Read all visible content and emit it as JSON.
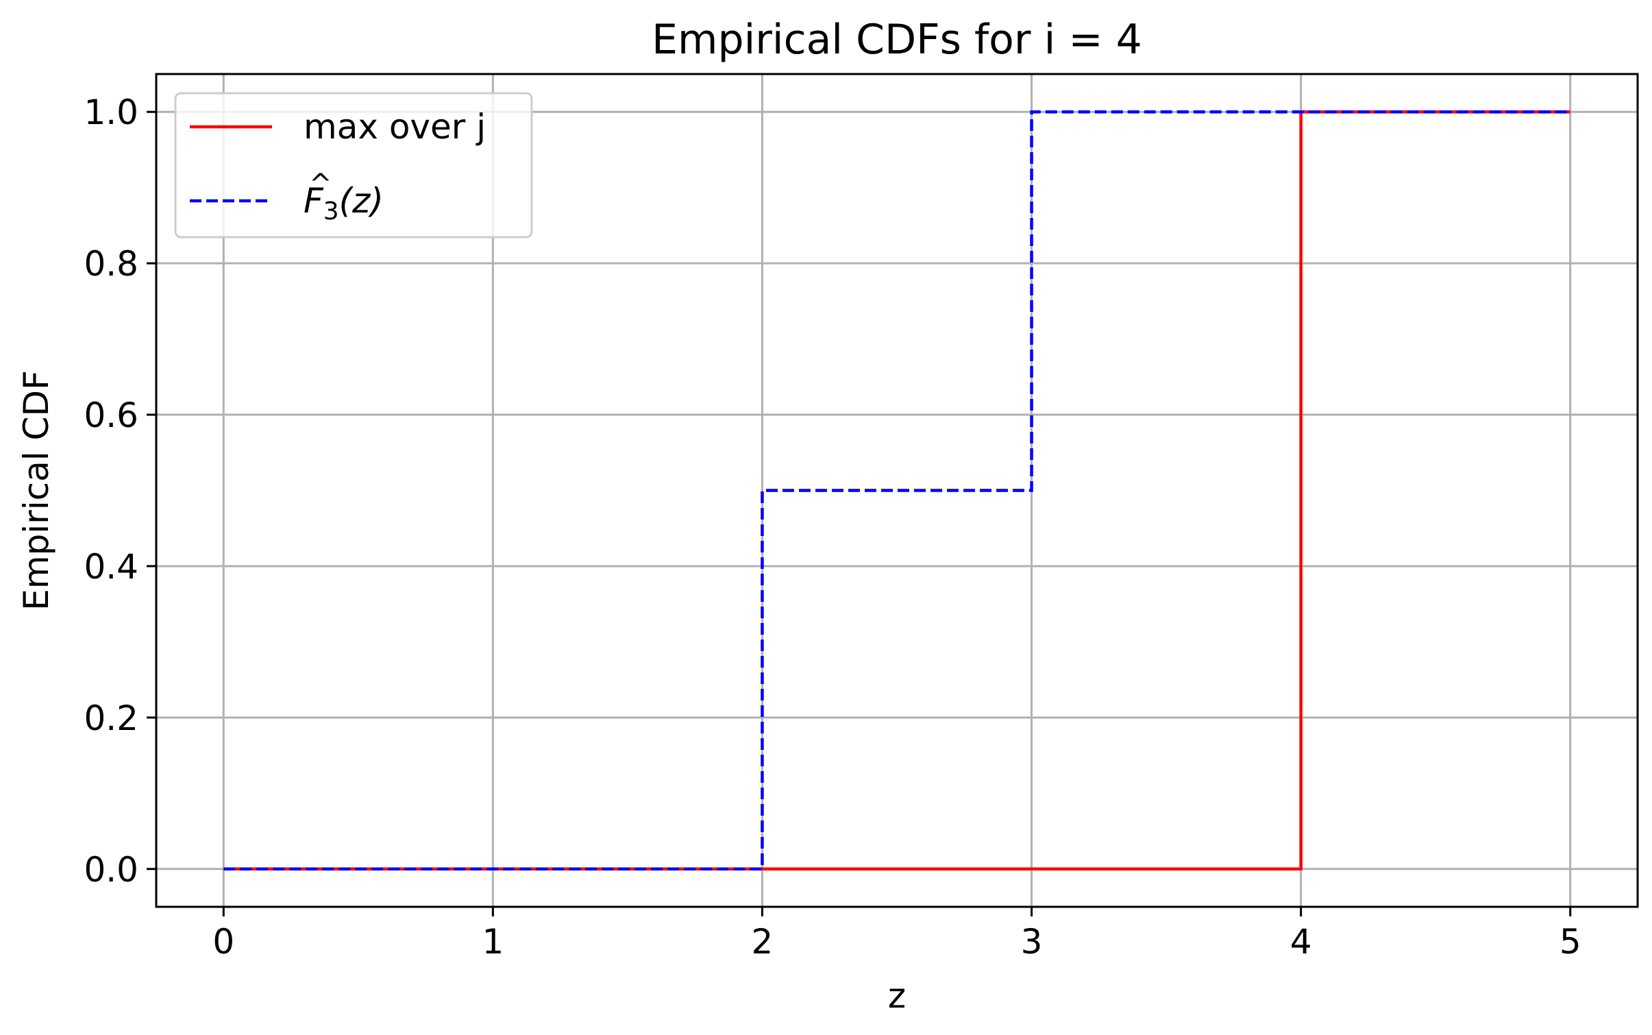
{
  "chart_data": {
    "type": "line",
    "title": "Empirical CDFs for i = 4",
    "xlabel": "z",
    "ylabel": "Empirical CDF",
    "xlim": [
      -0.25,
      5.25
    ],
    "ylim": [
      -0.05,
      1.05
    ],
    "xticks": [
      0,
      1,
      2,
      3,
      4,
      5
    ],
    "xtick_labels": [
      "0",
      "1",
      "2",
      "3",
      "4",
      "5"
    ],
    "yticks": [
      0.0,
      0.2,
      0.4,
      0.6,
      0.8,
      1.0
    ],
    "ytick_labels": [
      "0.0",
      "0.2",
      "0.4",
      "0.6",
      "0.8",
      "1.0"
    ],
    "grid": true,
    "legend_position": "top-left",
    "series": [
      {
        "name": "max over j",
        "color": "#ff0000",
        "line_style": "solid",
        "drawstyle": "steps-post",
        "x": [
          0,
          1,
          2,
          3,
          4,
          5
        ],
        "y": [
          0.0,
          0.0,
          0.0,
          0.0,
          1.0,
          1.0
        ]
      },
      {
        "name": "F̂₃(z)",
        "legend_math": {
          "base": "F",
          "sub": "3",
          "arg": "(z)"
        },
        "color": "#0000ff",
        "line_style": "dashed",
        "drawstyle": "steps-post",
        "x": [
          0,
          1,
          2,
          3,
          4,
          5
        ],
        "y": [
          0.0,
          0.0,
          0.5,
          1.0,
          1.0,
          1.0
        ]
      }
    ]
  }
}
